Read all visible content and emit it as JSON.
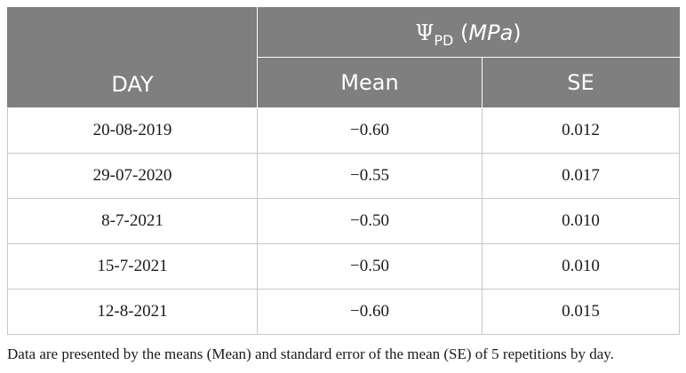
{
  "table": {
    "group_header": {
      "symbol": "Ψ",
      "subscript": "PD",
      "unit_open": "(",
      "unit": "MPa",
      "unit_close": ")"
    },
    "columns": [
      "DAY",
      "Mean",
      "SE"
    ],
    "rows": [
      {
        "day": "20-08-2019",
        "mean": "−0.60",
        "se": "0.012"
      },
      {
        "day": "29-07-2020",
        "mean": "−0.55",
        "se": "0.017"
      },
      {
        "day": "8-7-2021",
        "mean": "−0.50",
        "se": "0.010"
      },
      {
        "day": "15-7-2021",
        "mean": "−0.50",
        "se": "0.010"
      },
      {
        "day": "12-8-2021",
        "mean": "−0.60",
        "se": "0.015"
      }
    ]
  },
  "footnote": "Data are presented by the means (Mean) and standard error of the mean (SE) of 5 repetitions by day.",
  "colors": {
    "header_background": "#7f7f7f",
    "header_text": "#ffffff",
    "cell_border": "#c8c8c8"
  }
}
